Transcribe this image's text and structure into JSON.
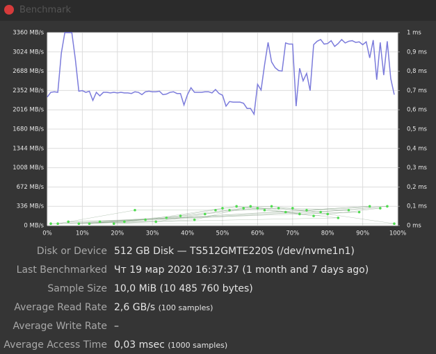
{
  "window_title": "Benchmark",
  "chart_data": {
    "type": "line",
    "xlim": [
      0,
      100
    ],
    "xticks": [
      {
        "value": 0,
        "label": "0%"
      },
      {
        "value": 10,
        "label": "10%"
      },
      {
        "value": 20,
        "label": "20%"
      },
      {
        "value": 30,
        "label": "30%"
      },
      {
        "value": 40,
        "label": "40%"
      },
      {
        "value": 50,
        "label": "50%"
      },
      {
        "value": 60,
        "label": "60%"
      },
      {
        "value": 70,
        "label": "70%"
      },
      {
        "value": 80,
        "label": "80%"
      },
      {
        "value": 90,
        "label": "90%"
      },
      {
        "value": 100,
        "label": "100%"
      }
    ],
    "ylim": [
      0,
      3360
    ],
    "yticks": [
      {
        "value": 0,
        "label": "0 MB/s"
      },
      {
        "value": 336,
        "label": "336 MB/s"
      },
      {
        "value": 672,
        "label": "672 MB/s"
      },
      {
        "value": 1008,
        "label": "1008 MB/s"
      },
      {
        "value": 1344,
        "label": "1344 MB/s"
      },
      {
        "value": 1680,
        "label": "1680 MB/s"
      },
      {
        "value": 2016,
        "label": "2016 MB/s"
      },
      {
        "value": 2352,
        "label": "2352 MB/s"
      },
      {
        "value": 2688,
        "label": "2688 MB/s"
      },
      {
        "value": 3024,
        "label": "3024 MB/s"
      },
      {
        "value": 3360,
        "label": "3360 MB/s"
      }
    ],
    "y2lim": [
      0,
      1
    ],
    "y2ticks": [
      {
        "value": 0,
        "label": "0 ms"
      },
      {
        "value": 0.1,
        "label": "0,1 ms"
      },
      {
        "value": 0.2,
        "label": "0,2 ms"
      },
      {
        "value": 0.3,
        "label": "0,3 ms"
      },
      {
        "value": 0.4,
        "label": "0,4 ms"
      },
      {
        "value": 0.5,
        "label": "0,5 ms"
      },
      {
        "value": 0.6,
        "label": "0,6 ms"
      },
      {
        "value": 0.7,
        "label": "0,7 ms"
      },
      {
        "value": 0.8,
        "label": "0,8 ms"
      },
      {
        "value": 0.9,
        "label": "0,9 ms"
      },
      {
        "value": 1,
        "label": "1 ms"
      }
    ],
    "grid": true,
    "series": [
      {
        "type": "line",
        "color": "#7b7bdb",
        "x": [
          0,
          1,
          2,
          3,
          4,
          5,
          6,
          7,
          8,
          9,
          10,
          11,
          12,
          13,
          14,
          15,
          16,
          17,
          18,
          19,
          20,
          21,
          22,
          23,
          24,
          25,
          26,
          27,
          28,
          29,
          30,
          31,
          32,
          33,
          34,
          35,
          36,
          37,
          38,
          39,
          40,
          41,
          42,
          43,
          44,
          45,
          46,
          47,
          48,
          49,
          50,
          51,
          52,
          53,
          54,
          55,
          56,
          57,
          58,
          59,
          60,
          61,
          62,
          63,
          64,
          65,
          66,
          67,
          68,
          69,
          70,
          71,
          72,
          73,
          74,
          75,
          76,
          77,
          78,
          79,
          80,
          81,
          82,
          83,
          84,
          85,
          86,
          87,
          88,
          89,
          90,
          91,
          92,
          93,
          94,
          95,
          96,
          97,
          98,
          99
        ],
        "values": [
          2240,
          2320,
          2330,
          2320,
          3000,
          3360,
          3360,
          3360,
          2900,
          2340,
          2350,
          2320,
          2340,
          2180,
          2320,
          2260,
          2320,
          2320,
          2310,
          2320,
          2310,
          2320,
          2310,
          2310,
          2300,
          2330,
          2320,
          2280,
          2330,
          2340,
          2330,
          2330,
          2340,
          2280,
          2290,
          2320,
          2330,
          2300,
          2300,
          2100,
          2280,
          2400,
          2320,
          2320,
          2320,
          2330,
          2330,
          2310,
          2370,
          2300,
          2270,
          2080,
          2160,
          2150,
          2150,
          2150,
          2130,
          2040,
          2040,
          1940,
          2460,
          2360,
          2800,
          3190,
          2850,
          2750,
          2700,
          2690,
          3180,
          3160,
          3160,
          2080,
          2740,
          2520,
          2650,
          2350,
          3150,
          3210,
          3240,
          3160,
          3170,
          3220,
          3120,
          3170,
          3240,
          3180,
          3210,
          3220,
          3190,
          3200,
          3150,
          3200,
          2920,
          3230,
          2540,
          3190,
          2620,
          3210,
          2560,
          2280
        ]
      },
      {
        "type": "scatter",
        "axis": "y2",
        "color": "#4fdc4f",
        "x": [
          1,
          3,
          6,
          9,
          12,
          15,
          19,
          22,
          25,
          28,
          31,
          34,
          38,
          42,
          45,
          48,
          50,
          52,
          54,
          56,
          58,
          60,
          62,
          64,
          66,
          68,
          70,
          72,
          74,
          76,
          78,
          80,
          83,
          86,
          89,
          92,
          95,
          97,
          99
        ],
        "values": [
          0.01,
          0.01,
          0.02,
          0.01,
          0.01,
          0.02,
          0.01,
          0.02,
          0.08,
          0.03,
          0.02,
          0.04,
          0.05,
          0.03,
          0.06,
          0.08,
          0.09,
          0.08,
          0.1,
          0.09,
          0.1,
          0.09,
          0.08,
          0.1,
          0.09,
          0.07,
          0.09,
          0.06,
          0.08,
          0.05,
          0.07,
          0.06,
          0.04,
          0.08,
          0.07,
          0.1,
          0.09,
          0.1,
          0.01
        ]
      }
    ]
  },
  "info": [
    {
      "label": "Disk or Device",
      "value": "512 GB Disk — TS512GMTE220S (/dev/nvme1n1)"
    },
    {
      "label": "Last Benchmarked",
      "value": "Чт 19 мар 2020 16:37:37 (1 month and 7 days ago)"
    },
    {
      "label": "Sample Size",
      "value": "10,0 MiB (10 485 760 bytes)"
    },
    {
      "label": "Average Read Rate",
      "value": "2,6 GB/s",
      "note": "(100 samples)"
    },
    {
      "label": "Average Write Rate",
      "value": "–"
    },
    {
      "label": "Average Access Time",
      "value": "0,03 msec",
      "note": "(1000 samples)"
    }
  ]
}
